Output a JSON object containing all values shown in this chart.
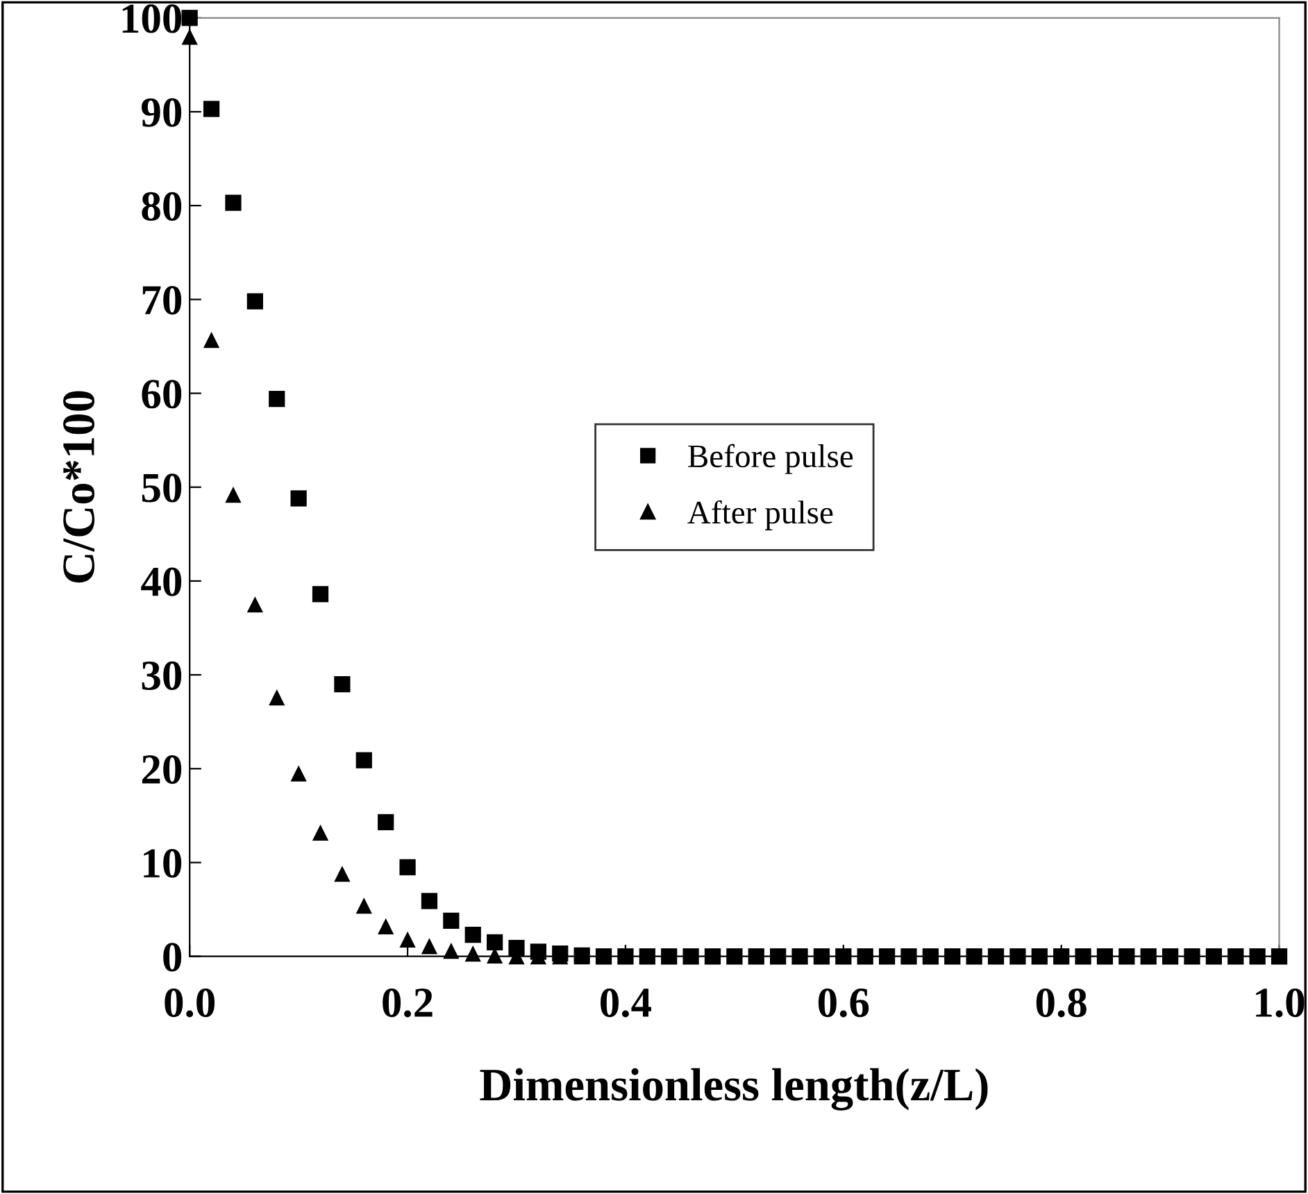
{
  "chart_data": {
    "type": "scatter",
    "xlabel": "Dimensionless length(z/L)",
    "ylabel": "C/Co*100",
    "x": [
      0,
      0.02,
      0.04,
      0.06,
      0.08,
      0.1,
      0.12,
      0.14,
      0.16,
      0.18,
      0.2,
      0.22,
      0.24,
      0.26,
      0.28,
      0.3,
      0.32,
      0.34,
      0.36,
      0.38,
      0.4,
      0.42,
      0.44,
      0.46,
      0.48,
      0.5,
      0.52,
      0.54,
      0.56,
      0.58,
      0.6,
      0.62,
      0.64,
      0.66,
      0.68,
      0.7,
      0.72,
      0.74,
      0.76,
      0.78,
      0.8,
      0.82,
      0.84,
      0.86,
      0.88,
      0.9,
      0.92,
      0.94,
      0.96,
      0.98,
      1.0
    ],
    "series": [
      {
        "name": "Before pulse",
        "color": "#000000",
        "marker": "square",
        "values": [
          100,
          90.3,
          80.3,
          69.8,
          59.4,
          48.8,
          38.6,
          29.0,
          20.9,
          14.3,
          9.5,
          5.9,
          3.8,
          2.3,
          1.5,
          0.9,
          0.5,
          0.3,
          0.1,
          0,
          0,
          0,
          0,
          0,
          0,
          0,
          0,
          0,
          0,
          0,
          0,
          0,
          0,
          0,
          0,
          0,
          0,
          0,
          0,
          0,
          0,
          0,
          0,
          0,
          0,
          0,
          0,
          0,
          0,
          0,
          0
        ]
      },
      {
        "name": "After pulse",
        "color": "#000000",
        "marker": "triangle",
        "values": [
          98,
          65.7,
          49.2,
          37.5,
          27.6,
          19.5,
          13.2,
          8.8,
          5.4,
          3.2,
          1.8,
          1.1,
          0.6,
          0.3,
          0.1,
          0,
          0,
          0,
          0,
          0,
          0,
          0,
          0,
          0,
          0,
          0,
          0,
          0,
          0,
          0,
          0,
          0,
          0,
          0,
          0,
          0,
          0,
          0,
          0,
          0,
          0,
          0,
          0,
          0,
          0,
          0,
          0,
          0,
          0,
          0,
          0
        ]
      }
    ],
    "xlim": [
      0,
      1.0
    ],
    "ylim": [
      0,
      100
    ],
    "xticks": [
      {
        "value": 0,
        "label": "0.0"
      },
      0.2,
      0.4,
      0.6,
      0.8,
      {
        "value": 1.0,
        "label": "1.0"
      }
    ],
    "yticks": [
      0,
      10,
      20,
      30,
      40,
      50,
      60,
      70,
      80,
      90,
      100
    ],
    "grid": false,
    "legend": "center"
  }
}
